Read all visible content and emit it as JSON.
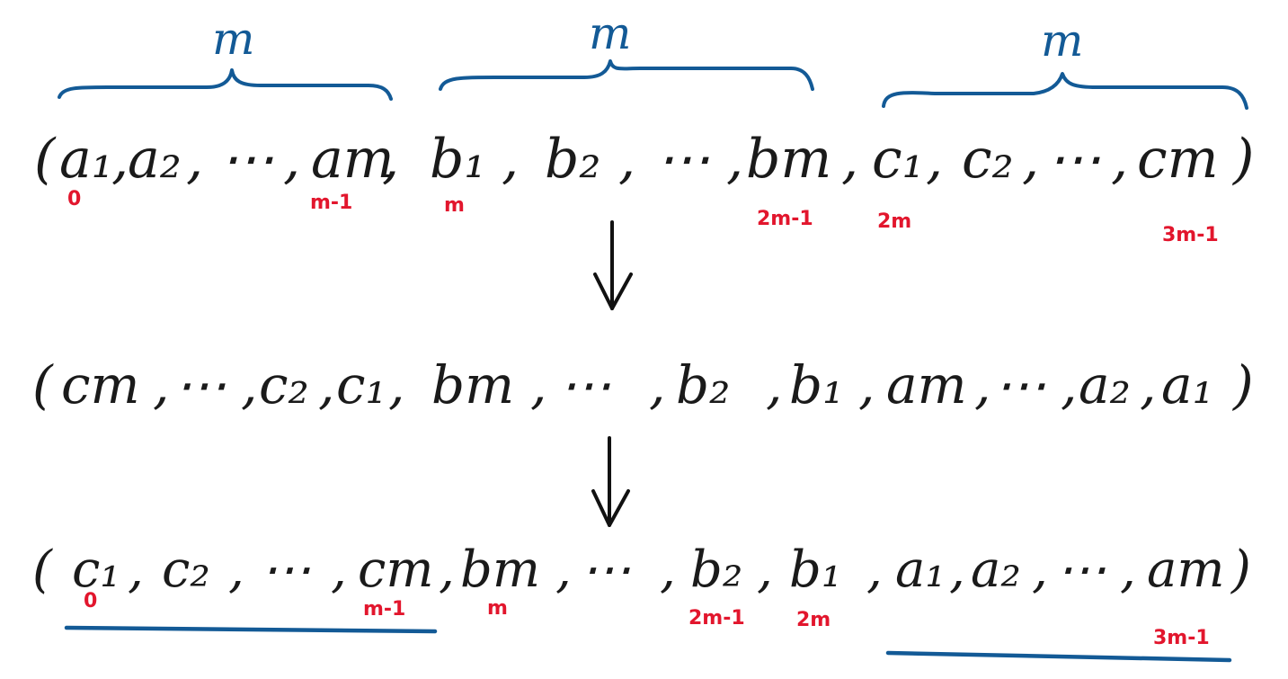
{
  "braces": {
    "left_label": "m",
    "middle_label": "m",
    "right_label": "m"
  },
  "row1": {
    "open": "(",
    "a1": "a₁",
    "a2": "a₂",
    "dots_a": "⋯",
    "am": "am",
    "b1": "b₁",
    "b2": "b₂",
    "dots_b": "⋯",
    "bm": "bm",
    "c1": "c₁",
    "c2": "c₂",
    "dots_c": "⋯",
    "cm": "cm",
    "close": ")",
    "idx_0": "0",
    "idx_m_minus_1": "m-1",
    "idx_m": "m",
    "idx_2m_minus_1": "2m-1",
    "idx_2m": "2m",
    "idx_3m_minus_1": "3m-1"
  },
  "row2": {
    "open": "(",
    "cm": "cm",
    "dots_c": "⋯",
    "c2": "c₂",
    "c1": "c₁",
    "bm": "bm",
    "dots_b": "⋯",
    "b2": "b₂",
    "b1": "b₁",
    "am": "am",
    "dots_a": "⋯",
    "a2": "a₂",
    "a1": "a₁",
    "close": ")"
  },
  "row3": {
    "open": "(",
    "c1": "c₁",
    "c2": "c₂",
    "dots_c": "⋯",
    "cm": "cm",
    "bm": "bm",
    "dots_b": "⋯",
    "b2": "b₂",
    "b1": "b₁",
    "a1": "a₁",
    "a2": "a₂",
    "dots_a": "⋯",
    "am": "am",
    "close": ")",
    "idx_0": "0",
    "idx_m_minus_1": "m-1",
    "idx_m": "m",
    "idx_2m_minus_1": "2m-1",
    "idx_2m": "2m",
    "idx_3m_minus_1": "3m-1"
  },
  "colors": {
    "ink": "#1a1a1a",
    "brace_blue": "#135a96",
    "index_red": "#e2162d"
  }
}
